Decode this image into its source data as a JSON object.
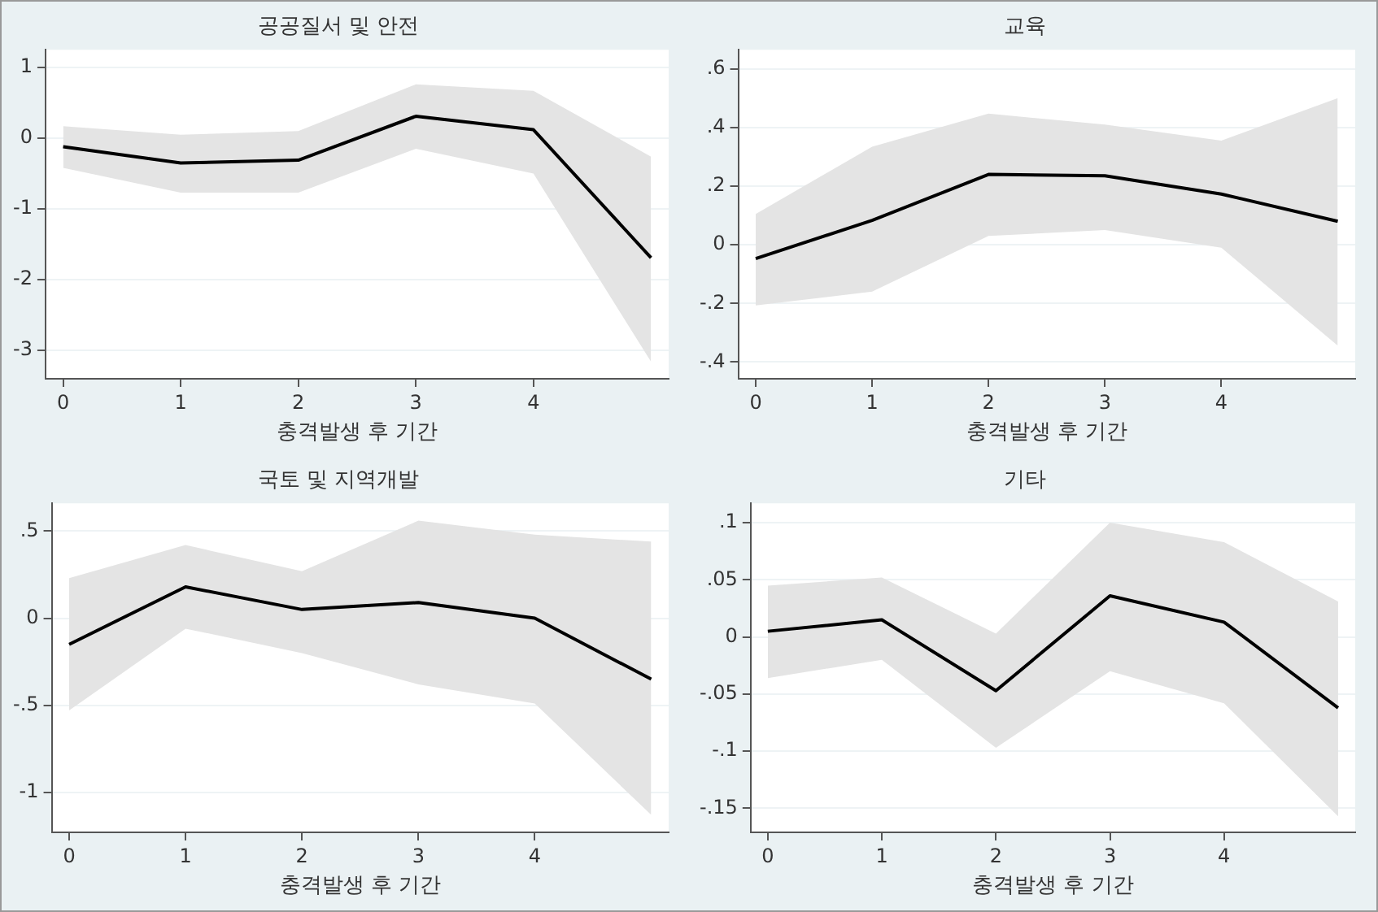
{
  "chart_data": [
    {
      "type": "line",
      "title": "공공질서 및 안전",
      "xlabel": "충격발생 후 기간",
      "x": [
        0,
        1,
        2,
        3,
        4,
        5
      ],
      "xlim": [
        -0.15,
        5.15
      ],
      "xticks": [
        0,
        1,
        2,
        3,
        4
      ],
      "ylim": [
        -3.4,
        1.25
      ],
      "yticks": [
        -3,
        -2,
        -1,
        0,
        1
      ],
      "grid": "y",
      "marker": "none",
      "series": [
        {
          "color": "#000000",
          "values": [
            -0.12,
            -0.35,
            -0.31,
            0.31,
            0.12,
            -1.69
          ],
          "lower": [
            -0.42,
            -0.77,
            -0.77,
            -0.15,
            -0.5,
            -3.16
          ],
          "upper": [
            0.17,
            0.05,
            0.1,
            0.76,
            0.67,
            -0.26
          ]
        }
      ]
    },
    {
      "type": "line",
      "title": "교육",
      "xlabel": "충격발생 후 기간",
      "x": [
        0,
        1,
        2,
        3,
        4,
        5
      ],
      "xlim": [
        -0.15,
        5.15
      ],
      "xticks": [
        0,
        1,
        2,
        3,
        4
      ],
      "ylim": [
        -0.457,
        0.665
      ],
      "yticks": [
        {
          "value": -0.4,
          "label": "-.4"
        },
        {
          "value": -0.2,
          "label": "-.2"
        },
        0,
        {
          "value": 0.2,
          "label": ".2"
        },
        {
          "value": 0.4,
          "label": ".4"
        },
        {
          "value": 0.6,
          "label": ".6"
        }
      ],
      "grid": "y",
      "marker": "none",
      "series": [
        {
          "color": "#000000",
          "values": [
            -0.047,
            0.083,
            0.24,
            0.235,
            0.173,
            0.08
          ],
          "lower": [
            -0.207,
            -0.16,
            0.03,
            0.05,
            -0.01,
            -0.344
          ],
          "upper": [
            0.105,
            0.334,
            0.447,
            0.41,
            0.355,
            0.5
          ]
        }
      ]
    },
    {
      "type": "line",
      "title": "국토 및 지역개발",
      "xlabel": "충격발생 후 기간",
      "x": [
        0,
        1,
        2,
        3,
        4,
        5
      ],
      "xlim": [
        -0.15,
        5.15
      ],
      "xticks": [
        0,
        1,
        2,
        3,
        4
      ],
      "ylim": [
        -1.23,
        0.66
      ],
      "yticks": [
        -1,
        {
          "value": -0.5,
          "label": "-.5"
        },
        0,
        {
          "value": 0.5,
          "label": ".5"
        }
      ],
      "grid": "y",
      "marker": "none",
      "series": [
        {
          "color": "#000000",
          "values": [
            -0.15,
            0.18,
            0.05,
            0.09,
            0,
            -0.35
          ],
          "lower": [
            -0.53,
            -0.06,
            -0.2,
            -0.38,
            -0.49,
            -1.13
          ],
          "upper": [
            0.23,
            0.42,
            0.27,
            0.56,
            0.48,
            0.44
          ]
        }
      ]
    },
    {
      "type": "line",
      "title": "기타",
      "xlabel": "충격발생 후 기간",
      "x": [
        0,
        1,
        2,
        3,
        4,
        5
      ],
      "xlim": [
        -0.15,
        5.15
      ],
      "xticks": [
        0,
        1,
        2,
        3,
        4
      ],
      "ylim": [
        -0.171,
        0.117
      ],
      "yticks": [
        {
          "value": -0.15,
          "label": "-.15"
        },
        {
          "value": -0.1,
          "label": "-.1"
        },
        {
          "value": -0.05,
          "label": "-.05"
        },
        0,
        {
          "value": 0.05,
          "label": ".05"
        },
        {
          "value": 0.1,
          "label": ".1"
        }
      ],
      "grid": "y",
      "marker": "none",
      "series": [
        {
          "color": "#000000",
          "values": [
            0.005,
            0.015,
            -0.047,
            0.036,
            0.013,
            -0.062
          ],
          "lower": [
            -0.036,
            -0.02,
            -0.097,
            -0.03,
            -0.058,
            -0.157
          ],
          "upper": [
            0.045,
            0.052,
            0.003,
            0.1,
            0.083,
            0.031
          ]
        }
      ]
    }
  ]
}
